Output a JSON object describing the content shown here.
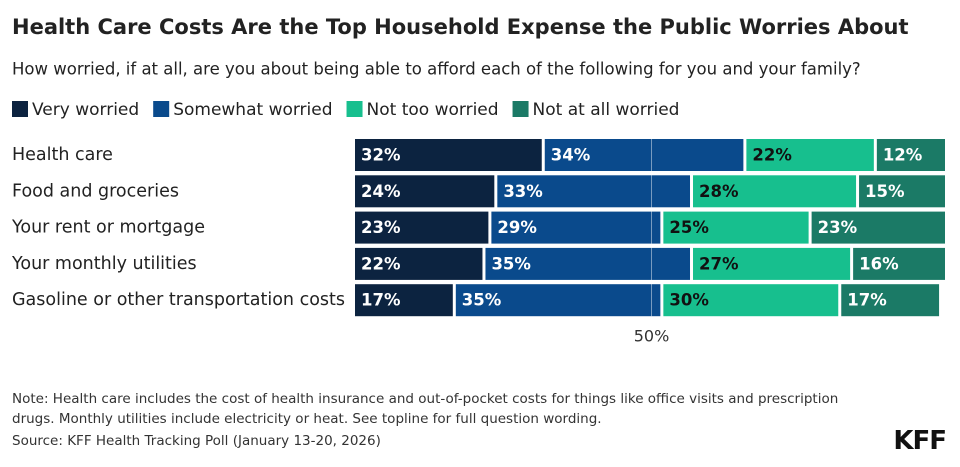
{
  "chart_data": {
    "type": "bar",
    "orientation": "horizontal",
    "stacked": true,
    "title": "Health Care Costs Are the Top Household Expense the Public Worries About",
    "subtitle": "How worried, if at all, are you about being able to afford each of the following for you and your family?",
    "categories": [
      "Health care",
      "Food and groceries",
      "Your rent or mortgage",
      "Your monthly utilities",
      "Gasoline or other transportation costs"
    ],
    "series": [
      {
        "name": "Very worried",
        "color": "#0c2340",
        "values": [
          32,
          24,
          23,
          22,
          17
        ],
        "value_labels": [
          "32%",
          "24%",
          "23%",
          "22%",
          "17%"
        ]
      },
      {
        "name": "Somewhat worried",
        "color": "#0a4a8c",
        "values": [
          34,
          33,
          29,
          35,
          35
        ],
        "value_labels": [
          "34%",
          "33%",
          "29%",
          "35%",
          "35%"
        ]
      },
      {
        "name": "Not too worried",
        "color": "#17bf8e",
        "values": [
          22,
          28,
          25,
          27,
          30
        ],
        "value_labels": [
          "22%",
          "28%",
          "25%",
          "27%",
          "30%"
        ]
      },
      {
        "name": "Not at all worried",
        "color": "#1b7a66",
        "values": [
          12,
          15,
          23,
          16,
          17
        ],
        "value_labels": [
          "12%",
          "15%",
          "23%",
          "16%",
          "17%"
        ]
      }
    ],
    "xlim": [
      0,
      100
    ],
    "xticks": [
      {
        "value": 50,
        "label": "50%"
      }
    ],
    "legend": "top",
    "note": "Note: Health care includes the cost of health insurance and out-of-pocket costs for things like office visits and prescription drugs. Monthly utilities include electricity or heat. See topline for full question wording.",
    "source": "Source: KFF Health Tracking Poll (January 13-20, 2026)",
    "logo": "KFF"
  }
}
